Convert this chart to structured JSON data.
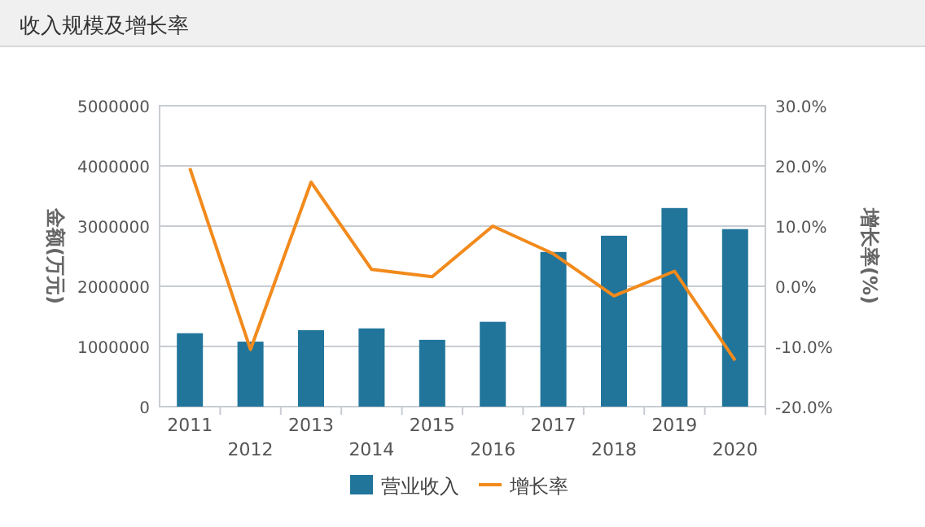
{
  "chart_data": {
    "type": "bar",
    "title": "收入规模及增长率",
    "ylabel": "金额(万元)",
    "y2label": "增长率(%)",
    "categories": [
      "2011",
      "2012",
      "2013",
      "2014",
      "2015",
      "2016",
      "2017",
      "2018",
      "2019",
      "2020"
    ],
    "series": [
      {
        "name": "营业收入",
        "color": "#21759b",
        "values": [
          1220000,
          1080000,
          1270000,
          1300000,
          1110000,
          1410000,
          2570000,
          2840000,
          3300000,
          2950000
        ]
      },
      {
        "name": "增长率",
        "type": "line",
        "axis": "y2",
        "color": "#f28a1c",
        "values": [
          19.6,
          -10.5,
          17.3,
          2.8,
          1.6,
          10.0,
          5.4,
          -1.6,
          2.5,
          -12.3
        ]
      }
    ],
    "ylim": [
      0,
      5000000
    ],
    "yticks": [
      0,
      1000000,
      2000000,
      3000000,
      4000000,
      5000000
    ],
    "y2lim": [
      -20,
      30
    ],
    "y2ticks": [
      {
        "value": -20,
        "label": "-20.0%"
      },
      {
        "value": -10,
        "label": "-10.0%"
      },
      {
        "value": 0,
        "label": "0.0%"
      },
      {
        "value": 10,
        "label": "10.0%"
      },
      {
        "value": 20,
        "label": "20.0%"
      },
      {
        "value": 30,
        "label": "30.0%"
      }
    ],
    "grid": "y",
    "legend": "bottom"
  }
}
